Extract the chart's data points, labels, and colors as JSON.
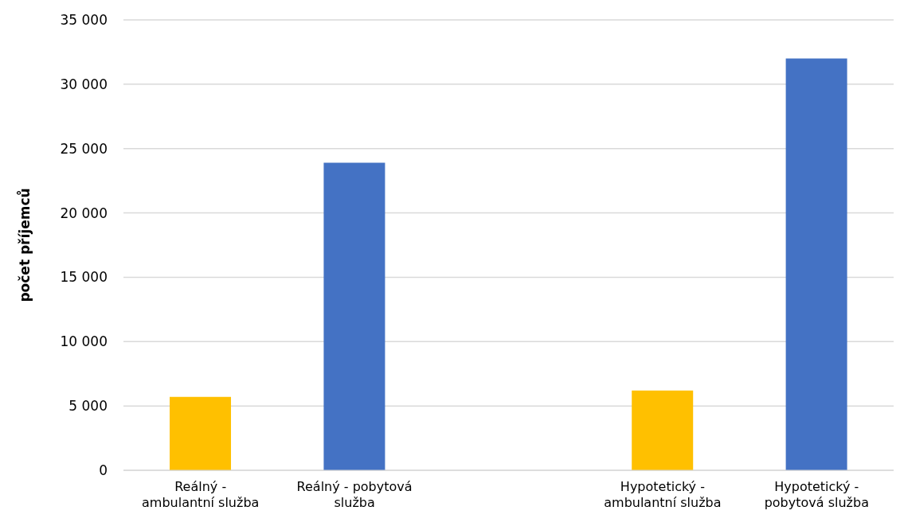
{
  "chart_data": {
    "type": "bar",
    "ylabel": "počet příjemců",
    "categories": [
      "Reálný - ambulantní služba",
      "Reálný - pobytová služba",
      null,
      "Hypotetický - ambulantní služba",
      "Hypotetický - pobytová služba"
    ],
    "values": [
      5700,
      23900,
      null,
      6200,
      32000
    ],
    "colors": [
      "#ffc000",
      "#4472c4",
      "#ffffff",
      "#ffc000",
      "#4472c4"
    ],
    "ylim": [
      0,
      35000
    ],
    "yticks": [
      {
        "value": 0,
        "label": "0"
      },
      {
        "value": 5000,
        "label": "5 000"
      },
      {
        "value": 10000,
        "label": "10 000"
      },
      {
        "value": 15000,
        "label": "15 000"
      },
      {
        "value": 20000,
        "label": "20 000"
      },
      {
        "value": 25000,
        "label": "25 000"
      },
      {
        "value": 30000,
        "label": "30 000"
      },
      {
        "value": 35000,
        "label": "35 000"
      }
    ],
    "grid": "y",
    "legend": false
  }
}
